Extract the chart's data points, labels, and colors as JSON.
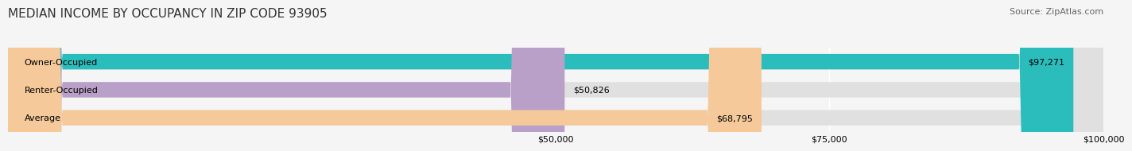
{
  "title": "MEDIAN INCOME BY OCCUPANCY IN ZIP CODE 93905",
  "source": "Source: ZipAtlas.com",
  "categories": [
    "Owner-Occupied",
    "Renter-Occupied",
    "Average"
  ],
  "values": [
    97271,
    50826,
    68795
  ],
  "bar_colors": [
    "#2bbcbc",
    "#b9a0c8",
    "#f5c99a"
  ],
  "value_labels": [
    "$97,271",
    "$50,826",
    "$68,795"
  ],
  "xlim_min": 0,
  "xlim_max": 100000,
  "xticks": [
    50000,
    75000,
    100000
  ],
  "xtick_labels": [
    "$50,000",
    "$75,000",
    "$100,000"
  ],
  "background_color": "#f5f5f5",
  "bar_background_color": "#e0e0e0",
  "title_fontsize": 11,
  "source_fontsize": 8,
  "label_fontsize": 8,
  "value_fontsize": 8,
  "bar_height": 0.55
}
